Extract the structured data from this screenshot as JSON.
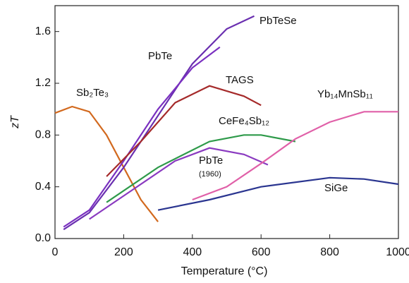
{
  "chart_data": {
    "type": "line",
    "xlabel": "Temperature (°C)",
    "ylabel": "zT",
    "xlim": [
      0,
      1000
    ],
    "xticks": [
      0,
      200,
      400,
      600,
      800,
      1000
    ],
    "ylim": [
      0,
      1.8
    ],
    "yticks": [
      {
        "value": 0,
        "label": "0.0"
      },
      0.4,
      0.8,
      1.2,
      1.6
    ],
    "annotations": [
      "(1960)"
    ],
    "series": [
      {
        "name": "Sb₂Te₃",
        "color": "#d2691e",
        "x": [
          0,
          50,
          100,
          150,
          200,
          250,
          300
        ],
        "values": [
          0.97,
          1.02,
          0.98,
          0.8,
          0.55,
          0.3,
          0.13
        ]
      },
      {
        "name": "PbTeSe",
        "color": "#6a2fb0",
        "x": [
          25,
          100,
          200,
          300,
          400,
          500,
          580
        ],
        "values": [
          0.07,
          0.2,
          0.55,
          0.95,
          1.35,
          1.62,
          1.72
        ]
      },
      {
        "name": "PbTe",
        "color": "#7a30c0",
        "x": [
          25,
          100,
          200,
          300,
          400,
          480
        ],
        "values": [
          0.09,
          0.22,
          0.6,
          1.0,
          1.32,
          1.48
        ]
      },
      {
        "name": "TAGS",
        "color": "#a52a2a",
        "x": [
          150,
          250,
          350,
          450,
          550,
          600
        ],
        "values": [
          0.48,
          0.75,
          1.05,
          1.18,
          1.1,
          1.03
        ]
      },
      {
        "name": "CeFe₄Sb₁₂",
        "color": "#2e9a4a",
        "x": [
          150,
          300,
          450,
          550,
          600,
          700
        ],
        "values": [
          0.28,
          0.55,
          0.75,
          0.8,
          0.8,
          0.75
        ]
      },
      {
        "name": "PbTe",
        "color": "#8a3ac0",
        "x": [
          100,
          200,
          350,
          450,
          550,
          620
        ],
        "values": [
          0.15,
          0.33,
          0.6,
          0.7,
          0.65,
          0.57
        ]
      },
      {
        "name": "Yb₁₄MnSb₁₁",
        "color": "#e060a8",
        "x": [
          400,
          500,
          600,
          700,
          800,
          900,
          1000
        ],
        "values": [
          0.3,
          0.4,
          0.58,
          0.77,
          0.9,
          0.98,
          0.98
        ]
      },
      {
        "name": "SiGe",
        "color": "#2a3590",
        "x": [
          300,
          450,
          600,
          800,
          900,
          1000
        ],
        "values": [
          0.22,
          0.3,
          0.4,
          0.47,
          0.46,
          0.42
        ]
      }
    ]
  }
}
